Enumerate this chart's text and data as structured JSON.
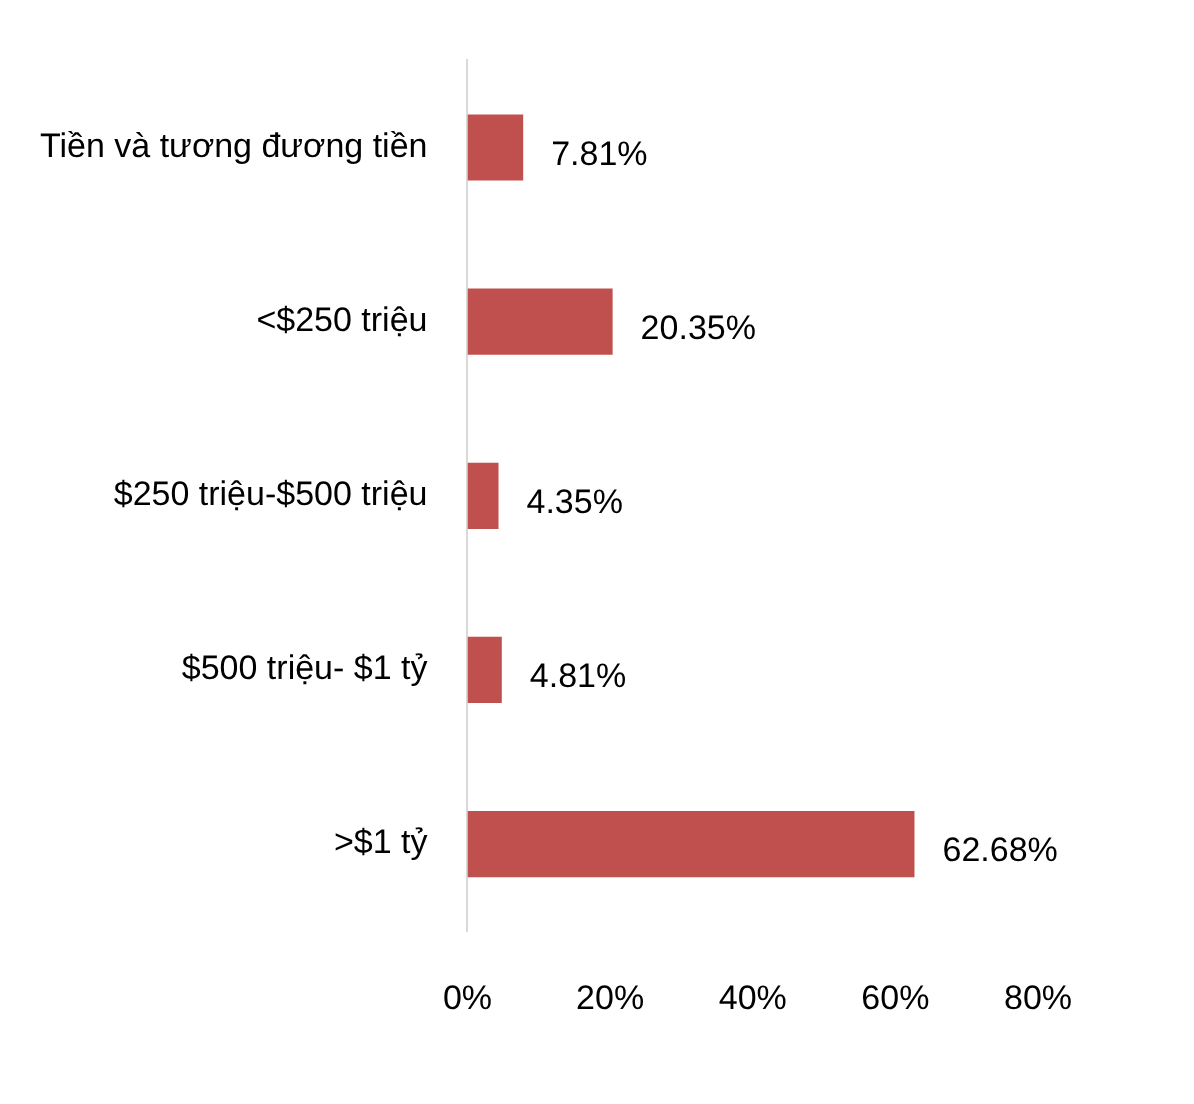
{
  "chart_data": {
    "type": "bar",
    "orientation": "horizontal",
    "categories": [
      "Tiền và tương đương tiền",
      "<$250 triệu",
      "$250 triệu-$500 triệu",
      "$500 triệu- $1 tỷ",
      ">$1 tỷ"
    ],
    "values": [
      7.81,
      20.35,
      4.35,
      4.81,
      62.68
    ],
    "value_labels": [
      "7.81%",
      "20.35%",
      "4.35%",
      "4.81%",
      "62.68%"
    ],
    "color": "#c0504d",
    "xlim": [
      0,
      80
    ],
    "xticks": [
      {
        "value": 0,
        "label": "0%"
      },
      {
        "value": 20,
        "label": "20%"
      },
      {
        "value": 40,
        "label": "40%"
      },
      {
        "value": 60,
        "label": "60%"
      },
      {
        "value": 80,
        "label": "80%"
      }
    ],
    "grid": false,
    "legend": false
  }
}
